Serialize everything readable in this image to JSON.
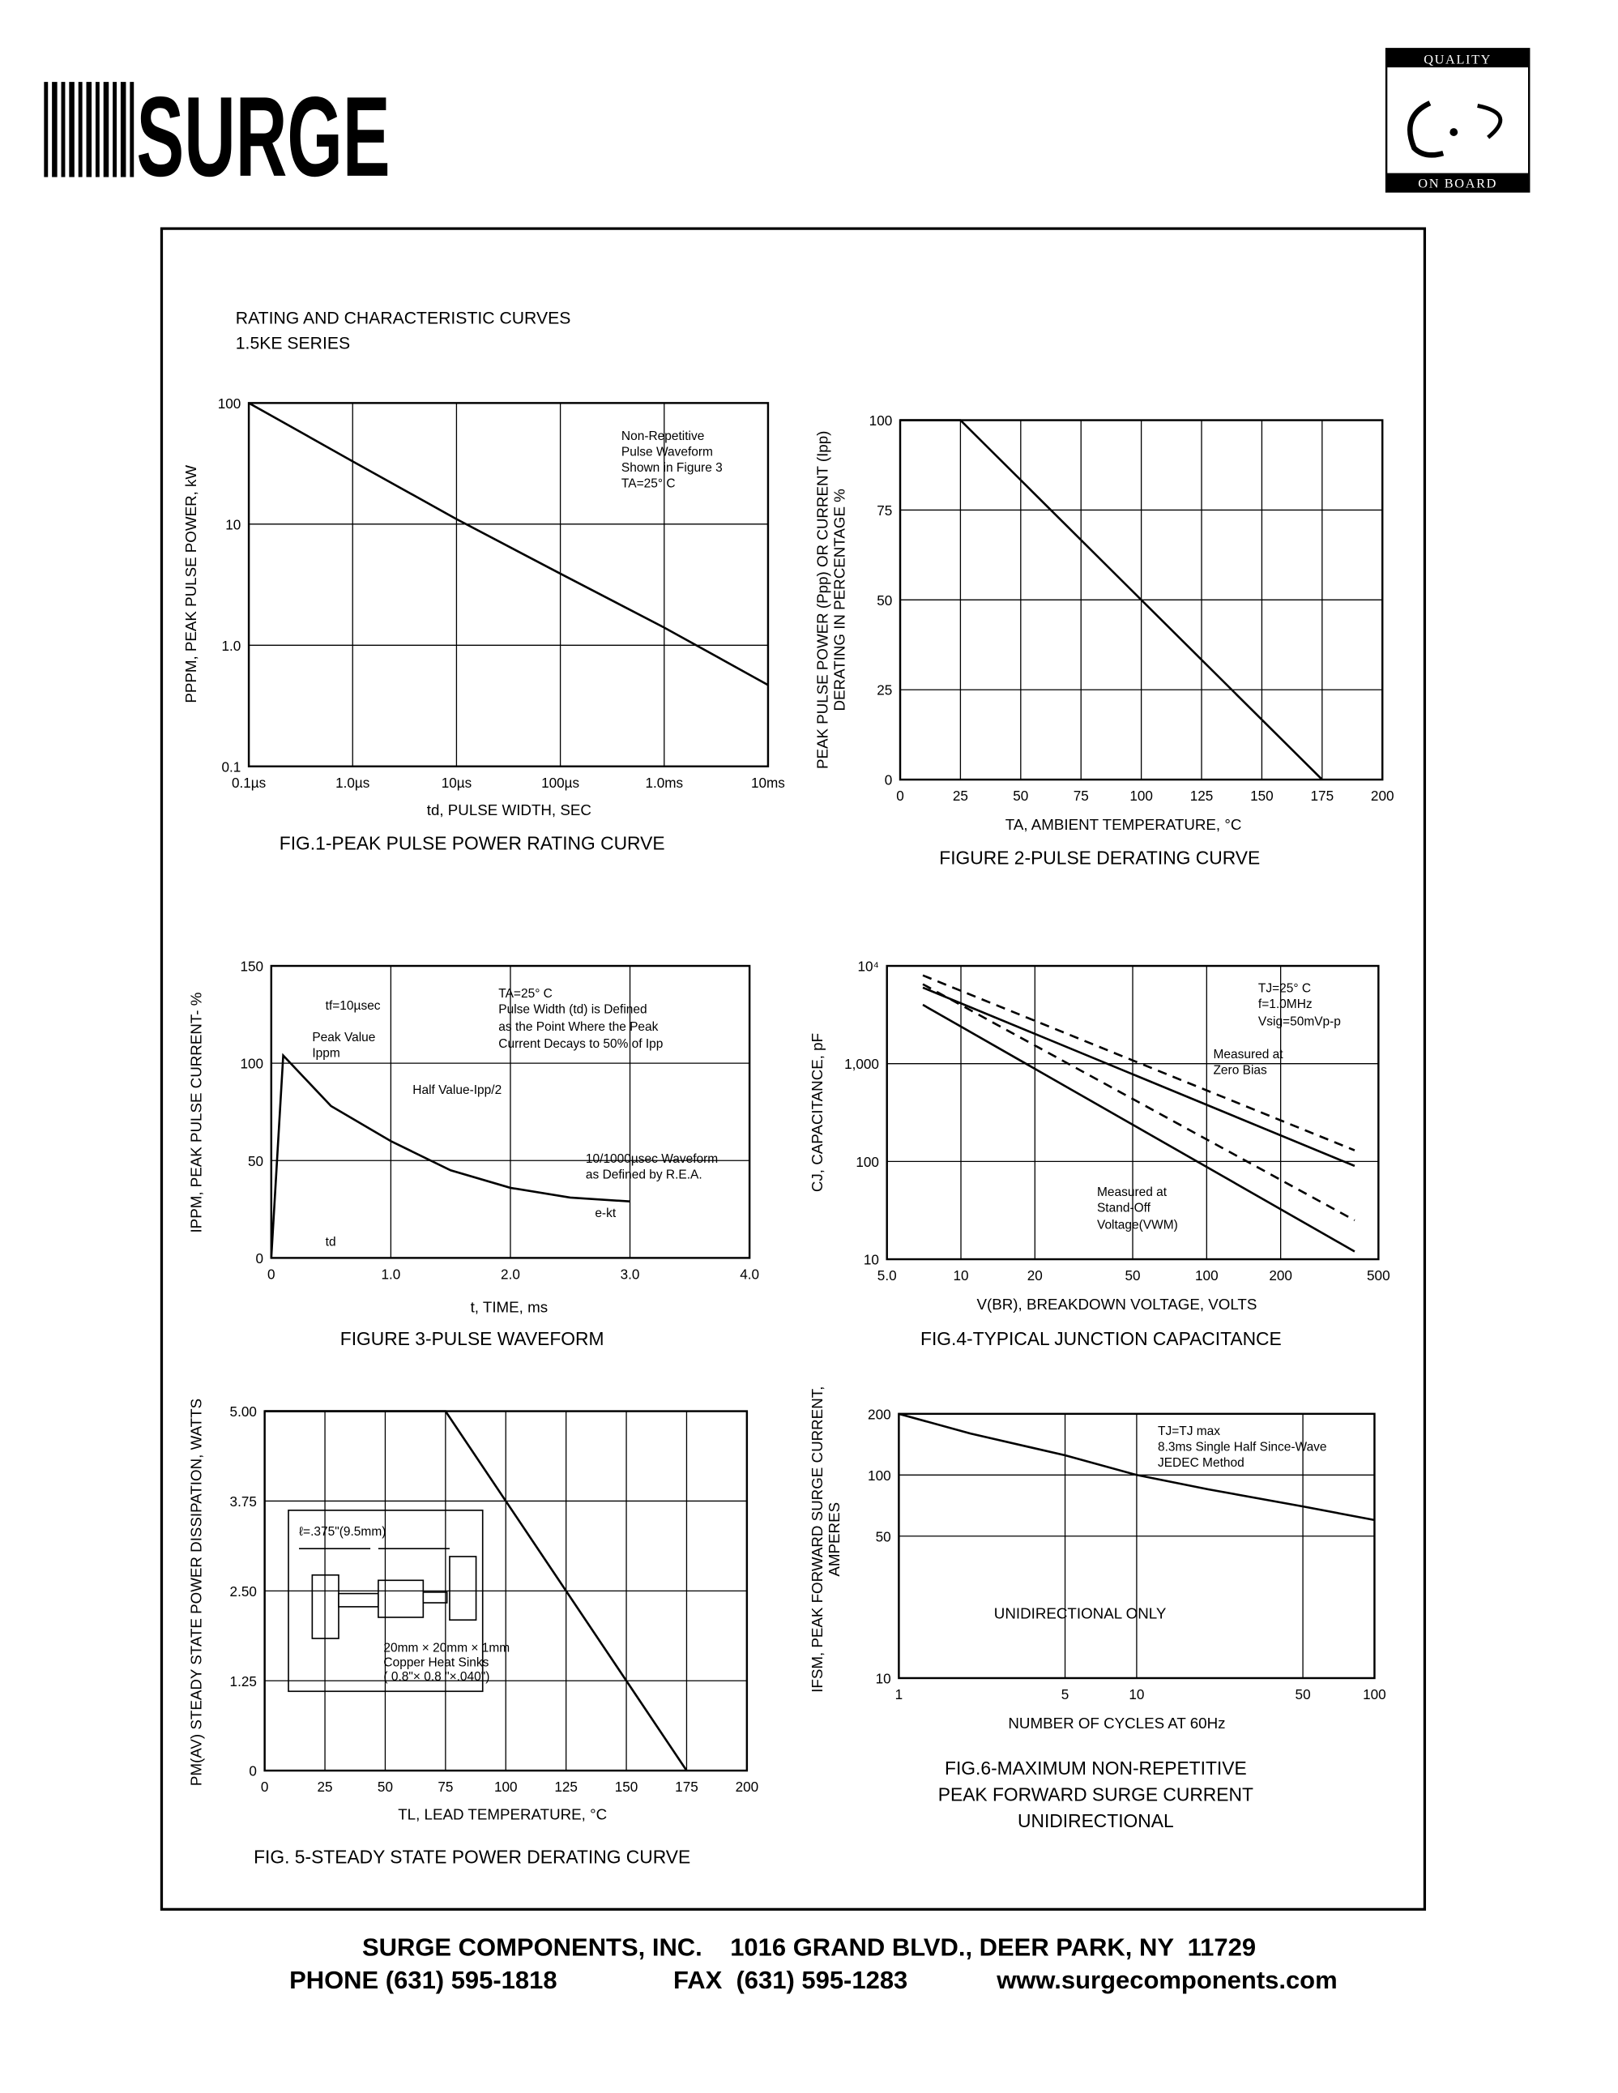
{
  "header": {
    "logo": "SURGE",
    "badge_top": "QUALITY",
    "badge_bottom": "ON BOARD"
  },
  "heading": {
    "title": "RATING AND CHARACTERISTIC CURVES",
    "series": "1.5KE SERIES"
  },
  "chart_data": [
    {
      "type": "line",
      "title": [
        "FIG.1-PEAK PULSE POWER RATING CURVE"
      ],
      "xlabel": "td, PULSE WIDTH, SEC",
      "ylabel": [
        "PPPM, PEAK PULSE POWER, kW"
      ],
      "xscale": "log",
      "yscale": "log",
      "grid": true,
      "x": [
        1e-07,
        1e-06,
        1e-05,
        0.0001,
        0.001,
        0.01
      ],
      "series": [
        {
          "color": "#000000",
          "values": [
            100,
            33,
            11,
            3.9,
            1.4,
            0.47
          ]
        }
      ],
      "xlim": [
        1e-07,
        0.01
      ],
      "ylim": [
        0.1,
        100
      ],
      "xticks": [
        {
          "value": 1e-07,
          "label": "0.1µs"
        },
        {
          "value": 1e-06,
          "label": "1.0µs"
        },
        {
          "value": 1e-05,
          "label": "10µs"
        },
        {
          "value": 0.0001,
          "label": "100µs"
        },
        {
          "value": 0.001,
          "label": "1.0ms"
        },
        {
          "value": 0.01,
          "label": "10ms"
        }
      ],
      "yticks": [
        0.1,
        {
          "value": 1,
          "label": "1.0"
        },
        10,
        100
      ],
      "annotations": [
        "Non-Repetitive",
        "Pulse Waveform",
        "Shown in Figure 3",
        "TA=25° C"
      ]
    },
    {
      "type": "line",
      "title": [
        "FIGURE 2-PULSE DERATING CURVE"
      ],
      "xlabel": "TA, AMBIENT  TEMPERATURE, °C",
      "ylabel": [
        "PEAK PULSE POWER (Ppp) OR CURRENT (Ipp)",
        "DERATING IN PERCENTAGE %"
      ],
      "xscale": "linear",
      "yscale": "linear",
      "grid": true,
      "x": [
        0,
        25,
        175
      ],
      "series": [
        {
          "color": "#000000",
          "values": [
            100,
            100,
            0
          ]
        }
      ],
      "xlim": [
        0,
        200
      ],
      "ylim": [
        0,
        100
      ],
      "xticks": [
        0,
        25,
        50,
        75,
        100,
        125,
        150,
        175,
        200
      ],
      "yticks": [
        0,
        25,
        50,
        75,
        100
      ],
      "annotations": []
    },
    {
      "type": "line",
      "title": [
        "FIGURE 3-PULSE WAVEFORM"
      ],
      "xlabel": "t, TIME, ms",
      "ylabel": [
        "IPPM, PEAK PULSE CURRENT- %"
      ],
      "xscale": "linear",
      "yscale": "linear",
      "grid": true,
      "x": [
        0,
        0.1,
        0.5,
        1.0,
        1.5,
        2.0,
        2.5,
        3.0
      ],
      "series": [
        {
          "color": "#000000",
          "values": [
            0,
            104,
            78,
            60,
            45,
            36,
            31,
            29
          ]
        }
      ],
      "xlim": [
        0,
        4
      ],
      "ylim": [
        0,
        150
      ],
      "xticks": [
        0,
        {
          "value": 1,
          "label": "1.0"
        },
        {
          "value": 2,
          "label": "2.0"
        },
        {
          "value": 3,
          "label": "3.0"
        },
        {
          "value": 4,
          "label": "4.0"
        }
      ],
      "yticks": [
        0,
        50,
        100,
        150
      ],
      "annotations": [
        "tf=10µsec",
        "Peak Value",
        "Ippm",
        "Half Value-Ipp/2",
        "TA=25° C",
        "Pulse Width (td) is Defined",
        "as the Point Where the Peak",
        "Current Decays to 50% of Ipp",
        "10/1000µsec Waveform",
        "as Defined by R.E.A.",
        "e-kt",
        "td"
      ]
    },
    {
      "type": "line",
      "title": [
        "FIG.4-TYPICAL JUNCTION CAPACITANCE"
      ],
      "xlabel": "V(BR), BREAKDOWN VOLTAGE, VOLTS",
      "ylabel": [
        "CJ, CAPACITANCE, pF"
      ],
      "xscale": "log",
      "yscale": "log",
      "grid": true,
      "x": [
        7,
        400
      ],
      "series": [
        {
          "color": "#000000",
          "dash": false,
          "values": [
            6000,
            90
          ]
        },
        {
          "color": "#000000",
          "dash": true,
          "values": [
            8000,
            130
          ]
        },
        {
          "color": "#000000",
          "dash": false,
          "values": [
            4000,
            12
          ]
        },
        {
          "color": "#000000",
          "dash": true,
          "values": [
            6500,
            25
          ]
        }
      ],
      "xlim": [
        5,
        500
      ],
      "ylim": [
        10,
        10000
      ],
      "xticks": [
        {
          "value": 5,
          "label": "5.0"
        },
        10,
        20,
        50,
        100,
        200,
        500
      ],
      "yticks": [
        10,
        100,
        {
          "value": 1000,
          "label": "1,000"
        },
        {
          "value": 10000,
          "label": "10⁴"
        }
      ],
      "annotations": [
        "TJ=25° C",
        "f=1.0MHz",
        "Vsig=50mVp-p",
        "Measured at",
        "Zero Bias",
        "Measured at",
        "Stand-Off",
        "Voltage(VWM)"
      ]
    },
    {
      "type": "line",
      "title": [
        "FIG. 5-STEADY STATE POWER DERATING CURVE"
      ],
      "xlabel": "TL, LEAD TEMPERATURE, °C",
      "ylabel": [
        "PM(AV) STEADY STATE POWER DISSIPATION, WATTS"
      ],
      "xscale": "linear",
      "yscale": "linear",
      "grid": true,
      "x": [
        0,
        75,
        175
      ],
      "series": [
        {
          "color": "#000000",
          "values": [
            5,
            5,
            0
          ]
        }
      ],
      "xlim": [
        0,
        200
      ],
      "ylim": [
        0,
        5
      ],
      "xticks": [
        0,
        25,
        50,
        75,
        100,
        125,
        150,
        175,
        200
      ],
      "yticks": [
        0,
        1.25,
        {
          "value": 2.5,
          "label": "2.50"
        },
        3.75,
        {
          "value": 5,
          "label": "5.00"
        }
      ],
      "annotations": [
        "ℓ=.375\"(9.5mm)",
        "20mm × 20mm × 1mm",
        "Copper Heat Sinks",
        "( 0.8\"× 0.8 \"×.040\")"
      ]
    },
    {
      "type": "line",
      "title": [
        "FIG.6-MAXIMUM NON-REPETITIVE",
        "PEAK FORWARD SURGE CURRENT",
        "UNIDIRECTIONAL"
      ],
      "xlabel": "NUMBER OF CYCLES AT 60Hz",
      "ylabel": [
        "IFSM, PEAK FORWARD SURGE CURRENT,",
        "AMPERES"
      ],
      "xscale": "log",
      "yscale": "log",
      "grid": true,
      "x": [
        1,
        2,
        5,
        10,
        20,
        50,
        100
      ],
      "series": [
        {
          "color": "#000000",
          "values": [
            200,
            160,
            125,
            100,
            85,
            70,
            60
          ]
        }
      ],
      "xlim": [
        1,
        100
      ],
      "ylim": [
        10,
        200
      ],
      "xticks": [
        1,
        5,
        10,
        50,
        100
      ],
      "yticks": [
        10,
        50,
        100,
        200
      ],
      "annotations": [
        "TJ=TJ max",
        "8.3ms Single Half Since-Wave",
        "JEDEC Method",
        "UNIDIRECTIONAL ONLY"
      ]
    }
  ],
  "footer": {
    "line1": "SURGE COMPONENTS, INC.    1016 GRAND BLVD., DEER PARK, NY  11729",
    "phone": "PHONE (631) 595-1818",
    "fax": "FAX  (631) 595-1283",
    "web": "www.surgecomponents.com"
  }
}
